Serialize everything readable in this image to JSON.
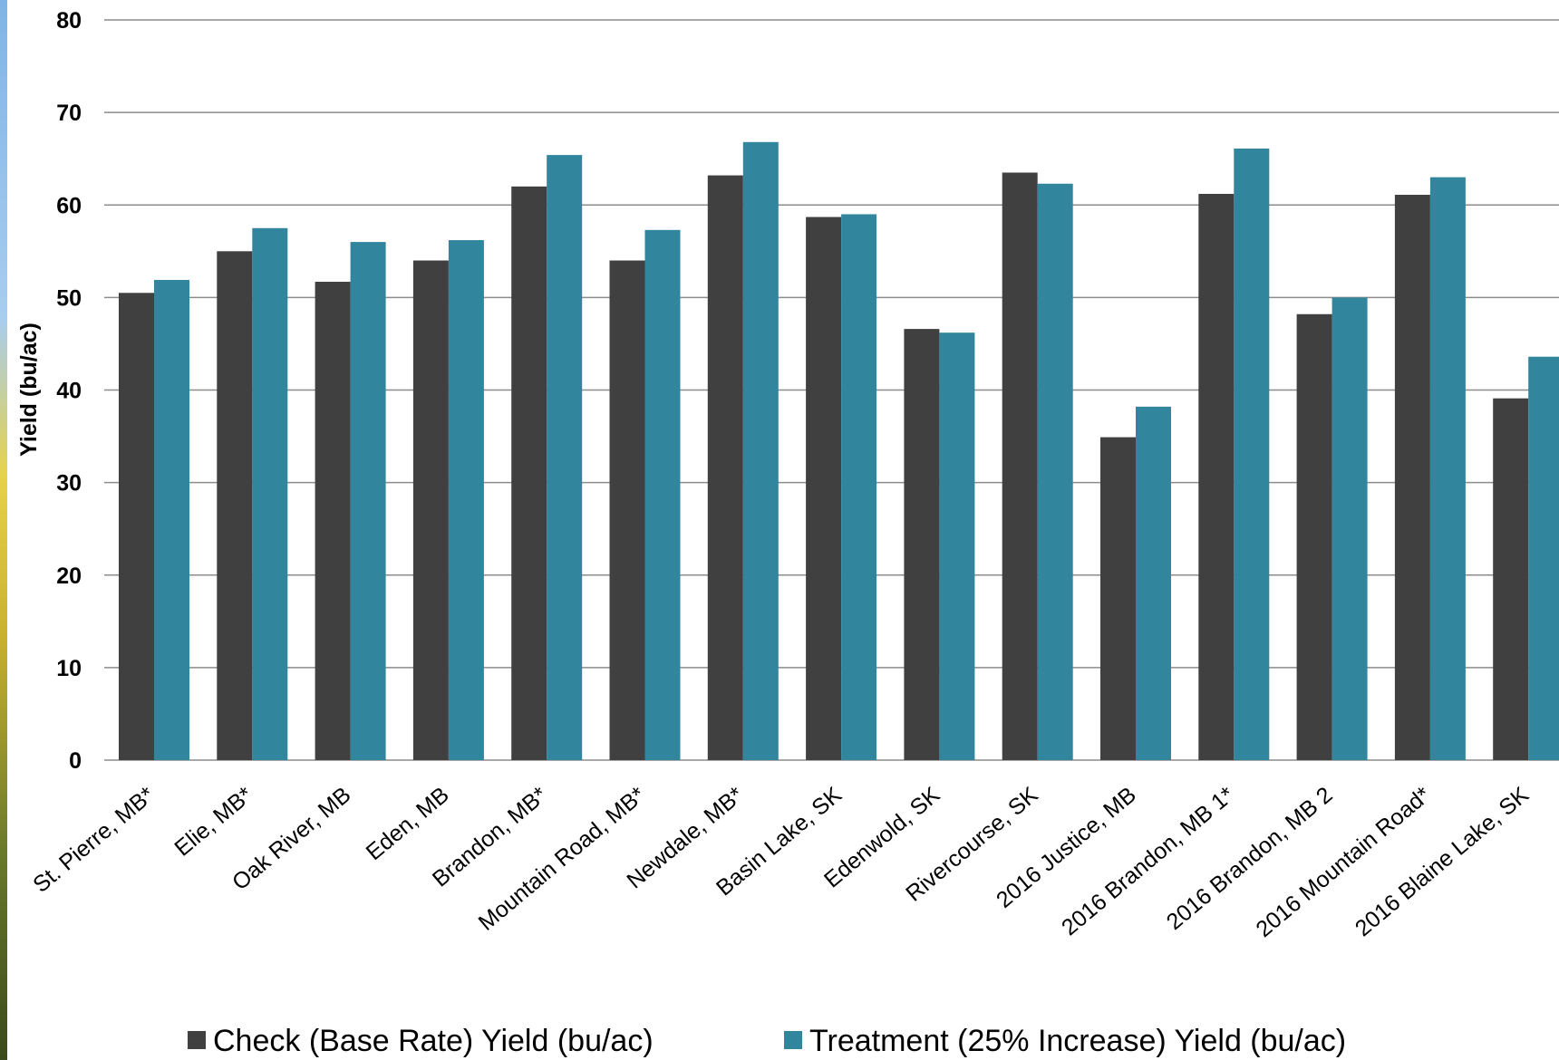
{
  "chart_data": {
    "type": "bar",
    "title": "",
    "xlabel": "",
    "ylabel": "Yield (bu/ac)",
    "ylim": [
      0,
      80
    ],
    "yticks": [
      0,
      10,
      20,
      30,
      40,
      50,
      60,
      70,
      80
    ],
    "grid": true,
    "legend_position": "bottom",
    "categories": [
      "St. Pierre, MB*",
      "Elie, MB*",
      "Oak River, MB",
      "Eden, MB",
      "Brandon, MB*",
      "Mountain Road, MB*",
      "Newdale, MB*",
      "Basin Lake, SK",
      "Edenwold, SK",
      "Rivercourse, SK",
      "2016 Justice, MB",
      "2016 Brandon, MB 1*",
      "2016 Brandon, MB 2",
      "2016 Mountain Road*",
      "2016 Blaine Lake, SK"
    ],
    "series": [
      {
        "name": "Check (Base Rate) Yield (bu/ac)",
        "color": "#404040",
        "values": [
          50.5,
          55.0,
          51.7,
          54.0,
          62.0,
          54.0,
          63.2,
          58.7,
          46.6,
          63.5,
          34.9,
          61.2,
          48.2,
          61.1,
          39.1
        ]
      },
      {
        "name": "Treatment (25% Increase) Yield (bu/ac)",
        "color": "#31859c",
        "values": [
          51.9,
          57.5,
          56.0,
          56.2,
          65.4,
          57.3,
          66.8,
          59.0,
          46.2,
          62.3,
          38.2,
          66.1,
          50.0,
          63.0,
          43.6
        ]
      }
    ]
  }
}
